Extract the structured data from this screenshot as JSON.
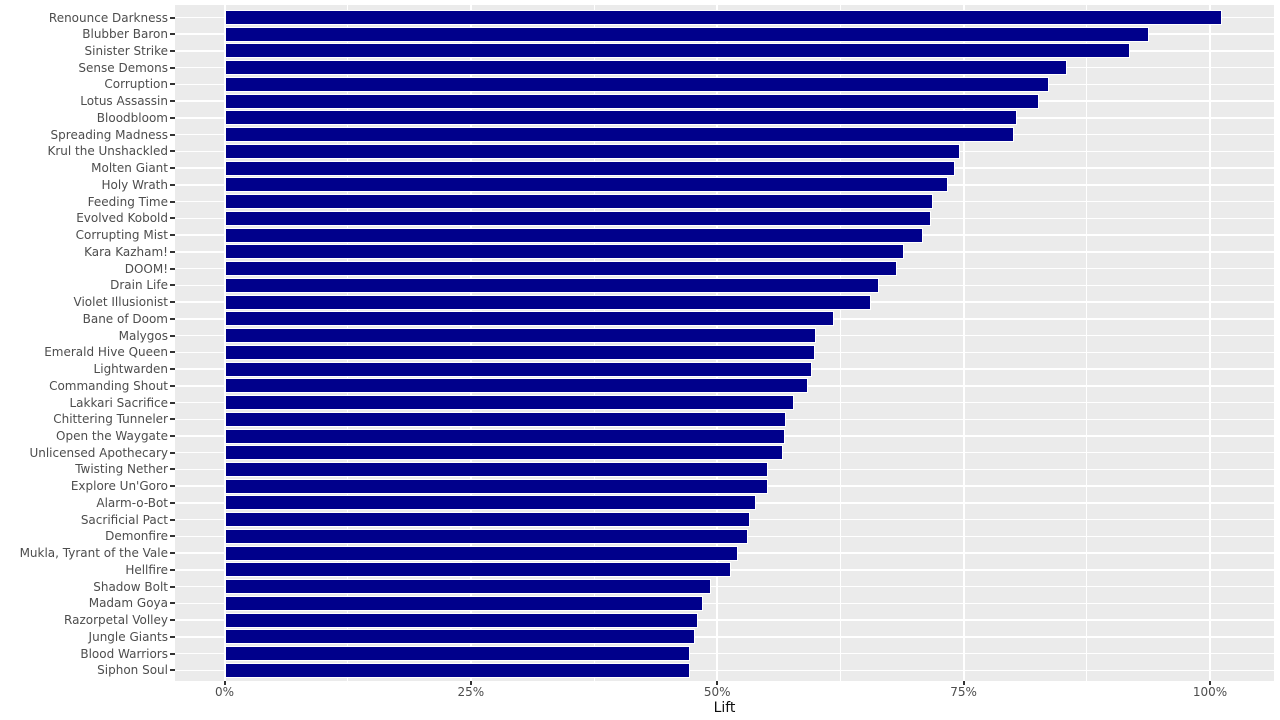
{
  "chart_data": {
    "type": "bar",
    "orientation": "horizontal",
    "title": "",
    "xlabel": "Lift",
    "ylabel": "",
    "x_tick_labels": [
      "0%",
      "25%",
      "50%",
      "75%",
      "100%"
    ],
    "x_tick_values": [
      0,
      25,
      50,
      75,
      100
    ],
    "minor_tick_values": [
      12.5,
      37.5,
      62.5,
      87.5
    ],
    "xlim": [
      -5.1,
      106.4
    ],
    "grid": "white major and minor vertical gridlines plus white horizontal gridline per category on gray panel",
    "legend": "none",
    "categories": [
      "Renounce Darkness",
      "Blubber Baron",
      "Sinister Strike",
      "Sense Demons",
      "Corruption",
      "Lotus Assassin",
      "Bloodbloom",
      "Spreading Madness",
      "Krul the Unshackled",
      "Molten Giant",
      "Holy Wrath",
      "Feeding Time",
      "Evolved Kobold",
      "Corrupting Mist",
      "Kara Kazham!",
      "DOOM!",
      "Drain Life",
      "Violet Illusionist",
      "Bane of Doom",
      "Malygos",
      "Emerald Hive Queen",
      "Lightwarden",
      "Commanding Shout",
      "Lakkari Sacrifice",
      "Chittering Tunneler",
      "Open the Waygate",
      "Unlicensed Apothecary",
      "Twisting Nether",
      "Explore Un'Goro",
      "Alarm-o-Bot",
      "Sacrificial Pact",
      "Demonfire",
      "Mukla, Tyrant of the Vale",
      "Hellfire",
      "Shadow Bolt",
      "Madam Goya",
      "Razorpetal Volley",
      "Jungle Giants",
      "Blood Warriors",
      "Siphon Soul"
    ],
    "values": [
      101.2,
      93.8,
      91.9,
      85.5,
      83.7,
      82.6,
      80.4,
      80.1,
      74.6,
      74.1,
      73.4,
      71.9,
      71.7,
      70.9,
      68.9,
      68.2,
      66.4,
      65.6,
      61.8,
      60.0,
      59.9,
      59.6,
      59.2,
      57.8,
      57.0,
      56.9,
      56.7,
      55.2,
      55.1,
      53.9,
      53.3,
      53.1,
      52.1,
      51.4,
      49.4,
      48.6,
      48.0,
      47.7,
      47.2,
      47.2
    ],
    "colors": {
      "bar_fill": "#00008B",
      "bar_outline": "#FFFFFF",
      "panel_background": "#EBEBEB",
      "gridline": "#FFFFFF",
      "axis_text": "#4D4D4D",
      "tick_mark": "#333333",
      "axis_title": "#0d0d0d"
    }
  }
}
